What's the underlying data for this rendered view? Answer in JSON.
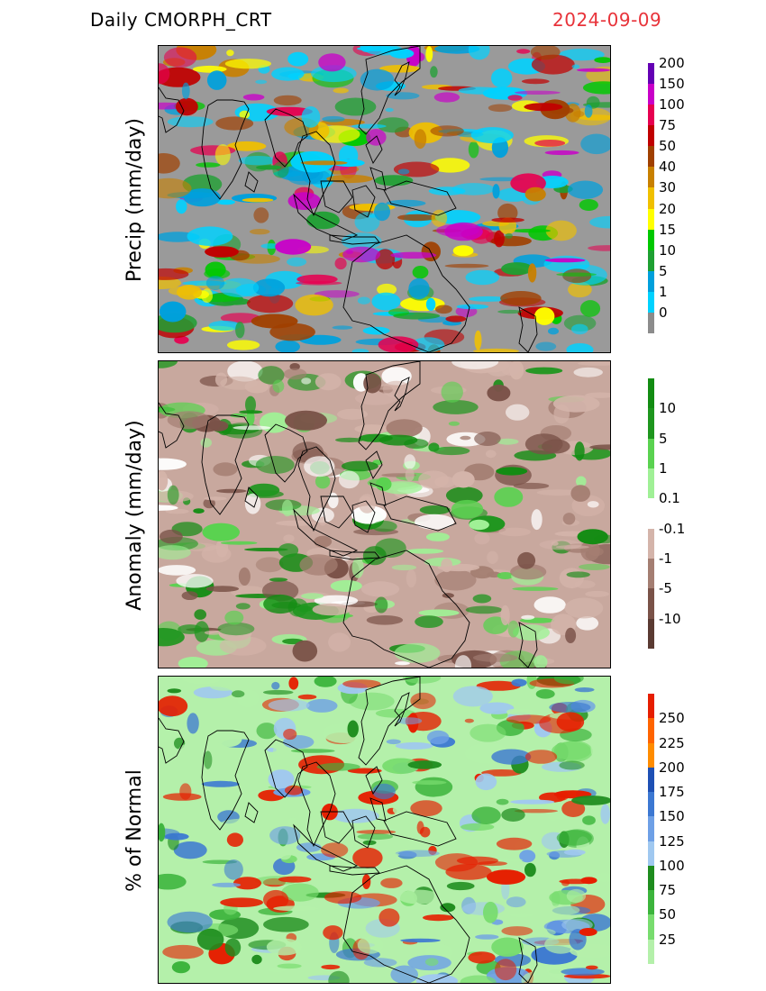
{
  "header": {
    "title_left": "Daily  CMORPH_CRT",
    "date_right": "2024-09-09",
    "date_color": "#e8333a"
  },
  "panels": [
    {
      "id": "precip",
      "ylabel": "Precip  (mm/day)",
      "background_color": "#9a9a9a",
      "colorbar": {
        "colors": [
          "#8c8c8c",
          "#00d2ff",
          "#00a0dc",
          "#1ea032",
          "#00c800",
          "#ffff00",
          "#f0c000",
          "#c88000",
          "#a04000",
          "#c00000",
          "#e60050",
          "#c800c8",
          "#6400b4"
        ],
        "labels": [
          "0",
          "1",
          "5",
          "10",
          "15",
          "20",
          "30",
          "40",
          "50",
          "75",
          "100",
          "150",
          "200"
        ]
      }
    },
    {
      "id": "anomaly",
      "ylabel": "Anomaly  (mm/day)",
      "background_color": "#c8a89e",
      "colorbar": {
        "colors": [
          "#5a3a32",
          "#7a5248",
          "#a47e72",
          "#d4b4aa",
          "#ffffff",
          "#a0f096",
          "#5ad250",
          "#1e961e",
          "#128c12"
        ],
        "labels": [
          "-10",
          "-5",
          "-1",
          "-0.1",
          "0.1",
          "1",
          "5",
          "10"
        ]
      }
    },
    {
      "id": "percent",
      "ylabel": "%  of  Normal",
      "background_color": "#b4f0aa",
      "colorbar": {
        "colors": [
          "#b4f0aa",
          "#78dc6e",
          "#3cb43c",
          "#1e8c1e",
          "#a0c8f0",
          "#6ea0e6",
          "#3c78d2",
          "#1e50b4",
          "#ff8c00",
          "#ff6400",
          "#e61e00"
        ],
        "labels": [
          "25",
          "50",
          "75",
          "100",
          "125",
          "150",
          "175",
          "200",
          "225",
          "250"
        ]
      }
    }
  ]
}
